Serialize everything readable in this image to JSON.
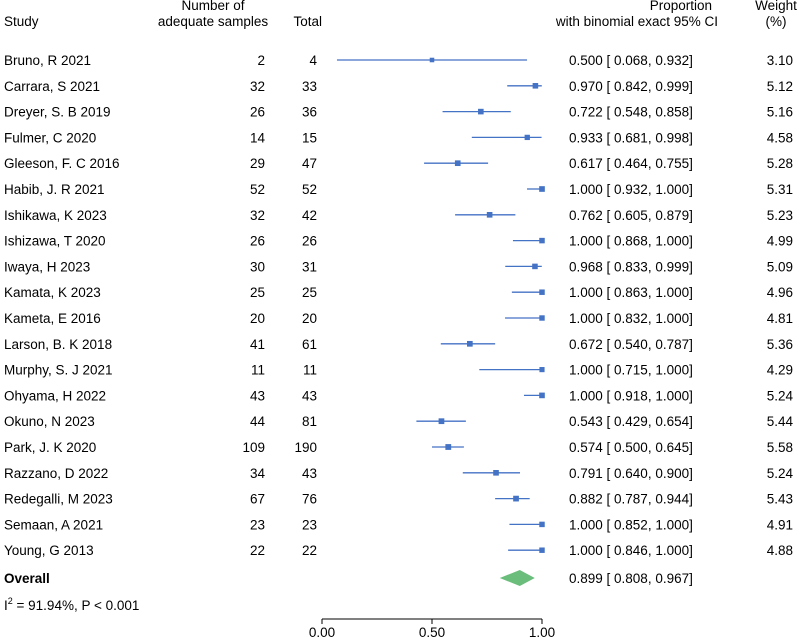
{
  "chart_data": {
    "type": "forest",
    "headers": {
      "study": "Study",
      "adequate": [
        "Number of",
        "adequate samples"
      ],
      "total": "Total",
      "proportion": [
        "Proportion",
        "with binomial exact 95% CI"
      ],
      "weight": [
        "Weight",
        "(%)"
      ]
    },
    "studies": [
      {
        "name": "Bruno, R 2021",
        "adequate": "2",
        "total": "4",
        "est": 0.5,
        "lo": 0.068,
        "hi": 0.932,
        "ci_text": "0.500 [ 0.068,  0.932]",
        "weight": "3.10"
      },
      {
        "name": "Carrara, S 2021",
        "adequate": "32",
        "total": "33",
        "est": 0.97,
        "lo": 0.842,
        "hi": 0.999,
        "ci_text": "0.970 [ 0.842,  0.999]",
        "weight": "5.12"
      },
      {
        "name": "Dreyer, S. B 2019",
        "adequate": "26",
        "total": "36",
        "est": 0.722,
        "lo": 0.548,
        "hi": 0.858,
        "ci_text": "0.722 [ 0.548,  0.858]",
        "weight": "5.16"
      },
      {
        "name": "Fulmer, C 2020",
        "adequate": "14",
        "total": "15",
        "est": 0.933,
        "lo": 0.681,
        "hi": 0.998,
        "ci_text": "0.933 [ 0.681,  0.998]",
        "weight": "4.58"
      },
      {
        "name": "Gleeson, F. C 2016",
        "adequate": "29",
        "total": "47",
        "est": 0.617,
        "lo": 0.464,
        "hi": 0.755,
        "ci_text": "0.617 [ 0.464,  0.755]",
        "weight": "5.28"
      },
      {
        "name": "Habib, J. R 2021",
        "adequate": "52",
        "total": "52",
        "est": 1.0,
        "lo": 0.932,
        "hi": 1.0,
        "ci_text": "1.000 [ 0.932,  1.000]",
        "weight": "5.31"
      },
      {
        "name": "Ishikawa, K 2023",
        "adequate": "32",
        "total": "42",
        "est": 0.762,
        "lo": 0.605,
        "hi": 0.879,
        "ci_text": "0.762 [ 0.605,  0.879]",
        "weight": "5.23"
      },
      {
        "name": "Ishizawa, T 2020",
        "adequate": "26",
        "total": "26",
        "est": 1.0,
        "lo": 0.868,
        "hi": 1.0,
        "ci_text": "1.000 [ 0.868,  1.000]",
        "weight": "4.99"
      },
      {
        "name": "Iwaya, H 2023",
        "adequate": "30",
        "total": "31",
        "est": 0.968,
        "lo": 0.833,
        "hi": 0.999,
        "ci_text": "0.968 [ 0.833,  0.999]",
        "weight": "5.09"
      },
      {
        "name": "Kamata, K 2023",
        "adequate": "25",
        "total": "25",
        "est": 1.0,
        "lo": 0.863,
        "hi": 1.0,
        "ci_text": "1.000 [ 0.863,  1.000]",
        "weight": "4.96"
      },
      {
        "name": "Kameta, E 2016",
        "adequate": "20",
        "total": "20",
        "est": 1.0,
        "lo": 0.832,
        "hi": 1.0,
        "ci_text": "1.000 [ 0.832,  1.000]",
        "weight": "4.81"
      },
      {
        "name": "Larson, B. K 2018",
        "adequate": "41",
        "total": "61",
        "est": 0.672,
        "lo": 0.54,
        "hi": 0.787,
        "ci_text": "0.672 [ 0.540,  0.787]",
        "weight": "5.36"
      },
      {
        "name": "Murphy, S. J 2021",
        "adequate": "11",
        "total": "11",
        "est": 1.0,
        "lo": 0.715,
        "hi": 1.0,
        "ci_text": "1.000 [ 0.715,  1.000]",
        "weight": "4.29"
      },
      {
        "name": "Ohyama, H 2022",
        "adequate": "43",
        "total": "43",
        "est": 1.0,
        "lo": 0.918,
        "hi": 1.0,
        "ci_text": "1.000 [ 0.918,  1.000]",
        "weight": "5.24"
      },
      {
        "name": "Okuno, N 2023",
        "adequate": "44",
        "total": "81",
        "est": 0.543,
        "lo": 0.429,
        "hi": 0.654,
        "ci_text": "0.543 [ 0.429,  0.654]",
        "weight": "5.44"
      },
      {
        "name": "Park, J. K 2020",
        "adequate": "109",
        "total": "190",
        "est": 0.574,
        "lo": 0.5,
        "hi": 0.645,
        "ci_text": "0.574 [ 0.500,  0.645]",
        "weight": "5.58"
      },
      {
        "name": "Razzano, D 2022",
        "adequate": "34",
        "total": "43",
        "est": 0.791,
        "lo": 0.64,
        "hi": 0.9,
        "ci_text": "0.791 [ 0.640,  0.900]",
        "weight": "5.24"
      },
      {
        "name": "Redegalli, M 2023",
        "adequate": "67",
        "total": "76",
        "est": 0.882,
        "lo": 0.787,
        "hi": 0.944,
        "ci_text": "0.882 [ 0.787,  0.944]",
        "weight": "5.43"
      },
      {
        "name": "Semaan, A 2021",
        "adequate": "23",
        "total": "23",
        "est": 1.0,
        "lo": 0.852,
        "hi": 1.0,
        "ci_text": "1.000 [ 0.852,  1.000]",
        "weight": "4.91"
      },
      {
        "name": "Young, G 2013",
        "adequate": "22",
        "total": "22",
        "est": 1.0,
        "lo": 0.846,
        "hi": 1.0,
        "ci_text": "1.000 [ 0.846,  1.000]",
        "weight": "4.88"
      }
    ],
    "overall": {
      "label": "Overall",
      "est": 0.899,
      "lo": 0.808,
      "hi": 0.967,
      "ci_text": "0.899 [ 0.808,  0.967]"
    },
    "heterogeneity": {
      "i_letter": "I",
      "superscript": "2",
      "text_1": " = 91.94%, ",
      "p_letter": "P",
      "text_2": " < 0.001"
    },
    "x_axis": {
      "range": [
        0,
        1
      ],
      "ticks": [
        0,
        0.5,
        1
      ],
      "tick_labels": [
        "0.00",
        "0.50",
        "1.00"
      ]
    },
    "colors": {
      "study": "#4472c4",
      "overall": "#6abd7b",
      "axis": "#000000"
    }
  }
}
